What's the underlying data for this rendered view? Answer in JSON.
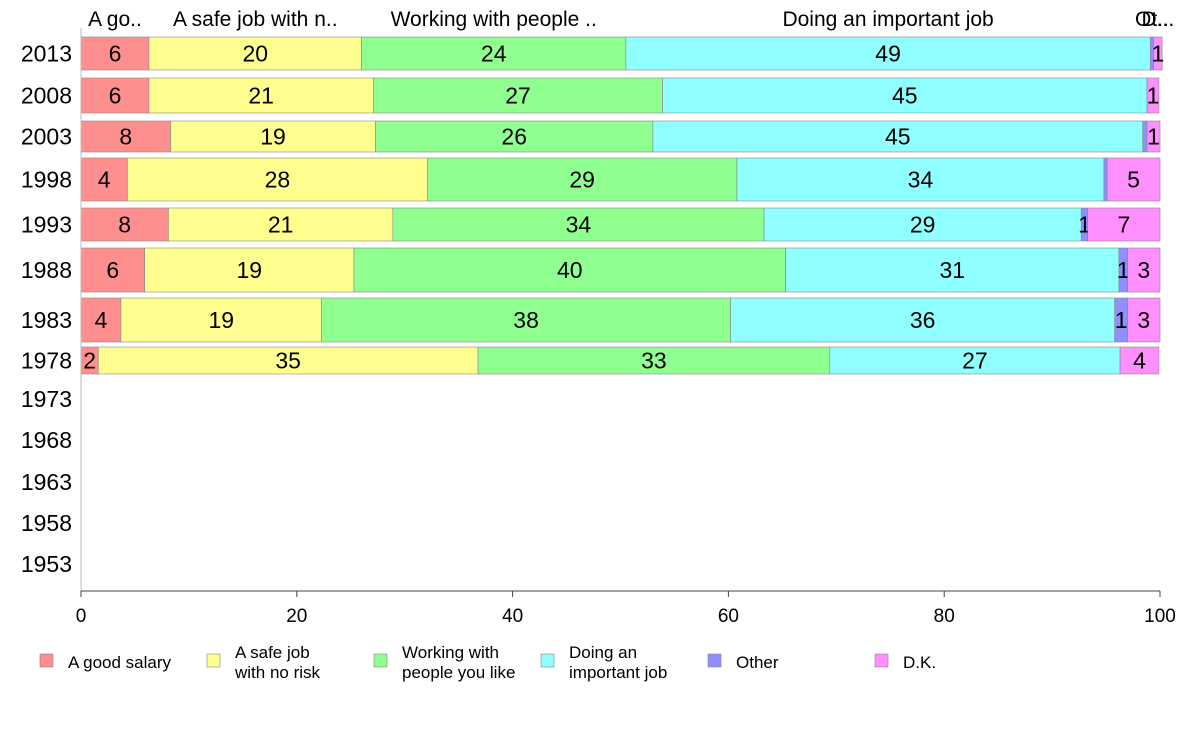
{
  "chart_data": {
    "type": "bar",
    "orientation": "horizontal",
    "stacked": true,
    "column_headers": [
      "A go..",
      "A safe job with n..",
      "Working with people ..",
      "Doing an important job",
      "Ot..",
      "D..."
    ],
    "categories": [
      "2013",
      "2008",
      "2003",
      "1998",
      "1993",
      "1988",
      "1983",
      "1978",
      "1973",
      "1968",
      "1963",
      "1958",
      "1953"
    ],
    "series": [
      {
        "name": "A good salary",
        "legend_lines": [
          "A good salary"
        ],
        "color": "#ff8f8f",
        "values": [
          6.3,
          6.3,
          8.3,
          4.3,
          8.1,
          5.9,
          3.7,
          1.6,
          null,
          null,
          null,
          null,
          null
        ],
        "labels": [
          "6",
          "6",
          "8",
          "4",
          "8",
          "6",
          "4",
          "2",
          "",
          "",
          "",
          "",
          ""
        ]
      },
      {
        "name": "A safe job with no risk",
        "legend_lines": [
          "A safe job",
          "with no risk"
        ],
        "color": "#ffff8f",
        "values": [
          19.7,
          20.8,
          19.0,
          27.8,
          20.8,
          19.4,
          18.6,
          35.2,
          null,
          null,
          null,
          null,
          null
        ],
        "labels": [
          "20",
          "21",
          "19",
          "28",
          "21",
          "19",
          "19",
          "35",
          "",
          "",
          "",
          "",
          ""
        ]
      },
      {
        "name": "Working with people you like",
        "legend_lines": [
          "Working with",
          "people you like"
        ],
        "color": "#8fff8f",
        "values": [
          24.5,
          26.8,
          25.7,
          28.7,
          34.4,
          40.0,
          37.9,
          32.6,
          null,
          null,
          null,
          null,
          null
        ],
        "labels": [
          "24",
          "27",
          "26",
          "29",
          "34",
          "40",
          "38",
          "33",
          "",
          "",
          "",
          "",
          ""
        ]
      },
      {
        "name": "Doing an important job",
        "legend_lines": [
          "Doing an",
          "important job"
        ],
        "color": "#8fffff",
        "values": [
          48.6,
          44.9,
          45.4,
          34.0,
          29.4,
          30.9,
          35.6,
          26.9,
          null,
          null,
          null,
          null,
          null
        ],
        "labels": [
          "49",
          "45",
          "45",
          "34",
          "29",
          "31",
          "36",
          "27",
          "",
          "",
          "",
          "",
          ""
        ]
      },
      {
        "name": "Other",
        "legend_lines": [
          "Other"
        ],
        "color": "#8f8fff",
        "values": [
          0.3,
          0.0,
          0.4,
          0.3,
          0.6,
          0.8,
          1.2,
          0.0,
          null,
          null,
          null,
          null,
          null
        ],
        "labels": [
          "",
          "",
          "",
          "",
          "1",
          "1",
          "1",
          "",
          "",
          "",
          "",
          "",
          ""
        ]
      },
      {
        "name": "D.K.",
        "legend_lines": [
          "D.K."
        ],
        "color": "#ff8fff",
        "values": [
          0.8,
          1.1,
          1.2,
          4.9,
          6.7,
          3.0,
          3.0,
          3.6,
          null,
          null,
          null,
          null,
          null
        ],
        "labels": [
          "1",
          "1",
          "1",
          "5",
          "7",
          "3",
          "3",
          "4",
          "",
          "",
          "",
          "",
          ""
        ]
      }
    ],
    "xlim": [
      0,
      100
    ],
    "xticks": [
      "0",
      "20",
      "40",
      "60",
      "80",
      "100"
    ],
    "legend_position": "bottom",
    "grid": false
  }
}
